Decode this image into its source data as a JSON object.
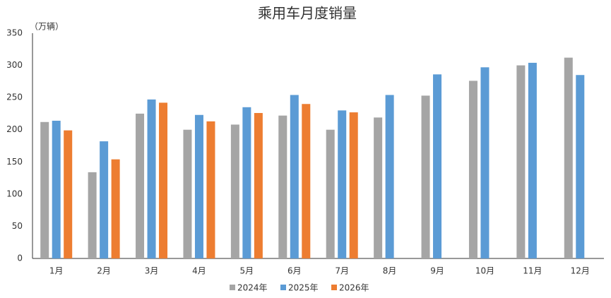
{
  "chart_data": {
    "type": "bar",
    "title": "乘用车月度销量",
    "y_label": "（万辆）",
    "categories": [
      "1月",
      "2月",
      "3月",
      "4月",
      "5月",
      "6月",
      "7月",
      "8月",
      "9月",
      "10月",
      "11月",
      "12月"
    ],
    "series": [
      {
        "name": "2024年",
        "color": "#a5a5a5",
        "values": [
          212,
          134,
          225,
          200,
          208,
          222,
          200,
          219,
          253,
          276,
          300,
          312
        ]
      },
      {
        "name": "2025年",
        "color": "#5b9bd5",
        "values": [
          214,
          182,
          247,
          223,
          235,
          254,
          230,
          254,
          286,
          297,
          304,
          285
        ]
      },
      {
        "name": "2026年",
        "color": "#ed7d31",
        "values": [
          199,
          154,
          242,
          213,
          226,
          240,
          227,
          null,
          null,
          null,
          null,
          null
        ]
      }
    ],
    "ylim": [
      0,
      350
    ],
    "yticks": [
      0,
      50,
      100,
      150,
      200,
      250,
      300,
      350
    ],
    "grid": false
  }
}
